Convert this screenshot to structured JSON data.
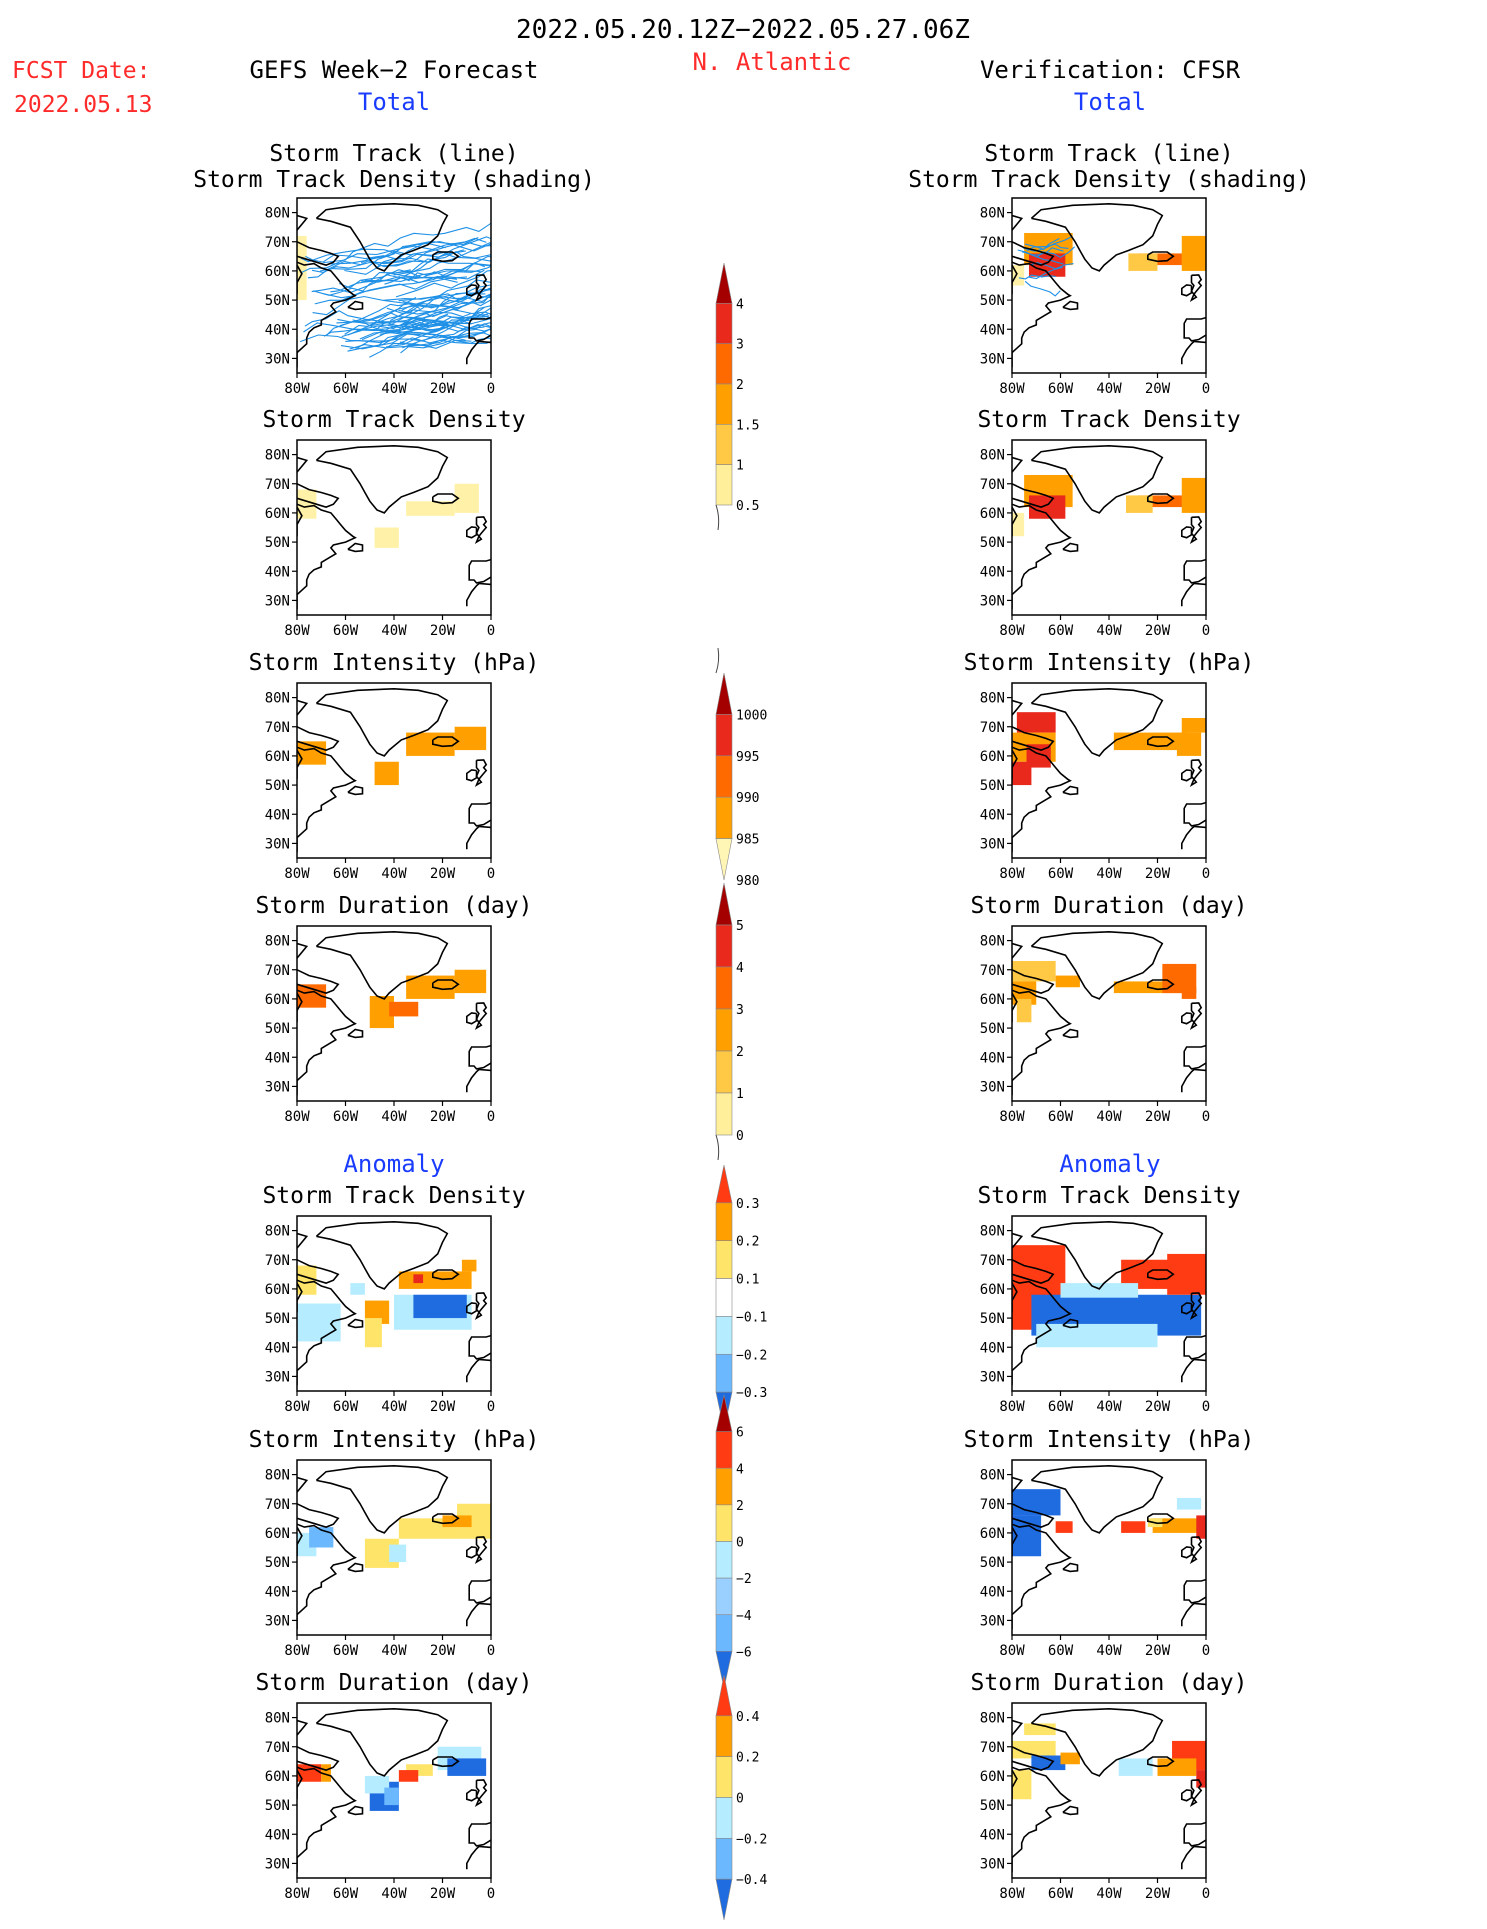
{
  "header": {
    "date_range": "2022.05.20.12Z−2022.05.27.06Z",
    "fcst_label": "FCST Date:",
    "fcst_date": "2022.05.13",
    "left_title": "GEFS Week−2 Forecast",
    "region": "N. Atlantic",
    "right_title": "Verification: CFSR"
  },
  "sections": {
    "total": "Total",
    "anomaly": "Anomaly"
  },
  "colors": {
    "title_red": "#ff2a2a",
    "label_blue": "#1a3cff",
    "track_line": "#1e90e6",
    "coast": "#000000"
  },
  "chart_data": [
    {
      "type": "heatmap",
      "panel": "gefs-total-track",
      "title": "Storm Track (line)",
      "subtitle": "Storm Track Density (shading)",
      "lon_ticks": [
        "80W",
        "60W",
        "40W",
        "20W",
        "0"
      ],
      "lat_ticks": [
        "80N",
        "70N",
        "60N",
        "50N",
        "40N",
        "30N"
      ],
      "ylim": [
        25,
        85
      ],
      "xlim": [
        -80,
        0
      ]
    },
    {
      "type": "heatmap",
      "panel": "cfsr-total-track",
      "title": "Storm Track (line)",
      "subtitle": "Storm Track Density (shading)",
      "lon_ticks": [
        "80W",
        "60W",
        "40W",
        "20W",
        "0"
      ],
      "lat_ticks": [
        "80N",
        "70N",
        "60N",
        "50N",
        "40N",
        "30N"
      ]
    },
    {
      "type": "heatmap",
      "panel": "gefs-total-density",
      "title": "Storm Track Density"
    },
    {
      "type": "heatmap",
      "panel": "cfsr-total-density",
      "title": "Storm Track Density"
    },
    {
      "type": "heatmap",
      "panel": "gefs-total-intensity",
      "title": "Storm Intensity (hPa)"
    },
    {
      "type": "heatmap",
      "panel": "cfsr-total-intensity",
      "title": "Storm Intensity (hPa)"
    },
    {
      "type": "heatmap",
      "panel": "gefs-total-duration",
      "title": "Storm Duration (day)"
    },
    {
      "type": "heatmap",
      "panel": "cfsr-total-duration",
      "title": "Storm Duration (day)"
    },
    {
      "type": "heatmap",
      "panel": "gefs-anom-density",
      "title": "Storm Track Density"
    },
    {
      "type": "heatmap",
      "panel": "cfsr-anom-density",
      "title": "Storm Track Density"
    },
    {
      "type": "heatmap",
      "panel": "gefs-anom-intensity",
      "title": "Storm Intensity (hPa)"
    },
    {
      "type": "heatmap",
      "panel": "cfsr-anom-intensity",
      "title": "Storm Intensity (hPa)"
    },
    {
      "type": "heatmap",
      "panel": "gefs-anom-duration",
      "title": "Storm Duration (day)"
    },
    {
      "type": "heatmap",
      "panel": "cfsr-anom-duration",
      "title": "Storm Duration (day)"
    }
  ],
  "colorbars": [
    {
      "name": "total-density",
      "labels": [
        "4",
        "3",
        "2",
        "1.5",
        "1",
        "0.5"
      ],
      "colors": [
        "#a50000",
        "#e8291c",
        "#ff6a00",
        "#ffa000",
        "#ffc845",
        "#ffef9a"
      ]
    },
    {
      "name": "total-intensity",
      "labels": [
        "1000",
        "995",
        "990",
        "985",
        "980"
      ],
      "colors": [
        "#fff5b4",
        "#ffa000",
        "#ff6a00",
        "#e8291c",
        "#a50000"
      ]
    },
    {
      "name": "total-duration",
      "labels": [
        "5",
        "4",
        "3",
        "2",
        "1",
        "0"
      ],
      "colors": [
        "#a50000",
        "#e8291c",
        "#ff6a00",
        "#ffa000",
        "#ffc845",
        "#ffef9a"
      ]
    },
    {
      "name": "anom-density",
      "labels": [
        "0.3",
        "0.2",
        "0.1",
        "−0.1",
        "−0.2",
        "−0.3"
      ],
      "colors": [
        "#ff3b14",
        "#ffa000",
        "#ffe46a",
        "#ffffff",
        "#b6ecff",
        "#6cb8ff",
        "#1f6be0"
      ]
    },
    {
      "name": "anom-intensity",
      "labels": [
        "6",
        "4",
        "2",
        "0",
        "−2",
        "−4",
        "−6"
      ],
      "colors": [
        "#a50000",
        "#ff3b14",
        "#ffa000",
        "#ffe46a",
        "#b6ecff",
        "#9ad0ff",
        "#6cb8ff",
        "#1f6be0"
      ]
    },
    {
      "name": "anom-duration",
      "labels": [
        "0.4",
        "0.2",
        "0",
        "−0.2",
        "−0.4"
      ],
      "colors": [
        "#ff3b14",
        "#ffa000",
        "#ffe46a",
        "#b6ecff",
        "#6cb8ff",
        "#1f6be0"
      ]
    }
  ]
}
